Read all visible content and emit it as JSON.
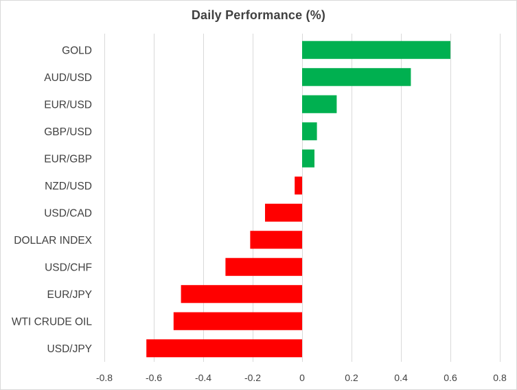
{
  "chart_data": {
    "type": "bar",
    "orientation": "horizontal",
    "title": "Daily Performance (%)",
    "xlabel": "",
    "ylabel": "",
    "categories": [
      "GOLD",
      "AUD/USD",
      "EUR/USD",
      "GBP/USD",
      "EUR/GBP",
      "NZD/USD",
      "USD/CAD",
      "DOLLAR INDEX",
      "USD/CHF",
      "EUR/JPY",
      "WTI CRUDE OIL",
      "USD/JPY"
    ],
    "values": [
      0.6,
      0.44,
      0.14,
      0.06,
      0.05,
      -0.03,
      -0.15,
      -0.21,
      -0.31,
      -0.49,
      -0.52,
      -0.63
    ],
    "xlim": [
      -0.8,
      0.8
    ],
    "xticks": [
      -0.8,
      -0.6,
      -0.4,
      -0.2,
      0,
      0.2,
      0.4,
      0.6,
      0.8
    ],
    "xtick_labels": [
      "-0.8",
      "-0.6",
      "-0.4",
      "-0.2",
      "0",
      "0.2",
      "0.4",
      "0.6",
      "0.8"
    ],
    "grid": true,
    "legend": "none",
    "colors": {
      "positive": "#00b050",
      "negative": "#ff0000",
      "grid": "#d9d9d9",
      "text": "#404040"
    }
  }
}
